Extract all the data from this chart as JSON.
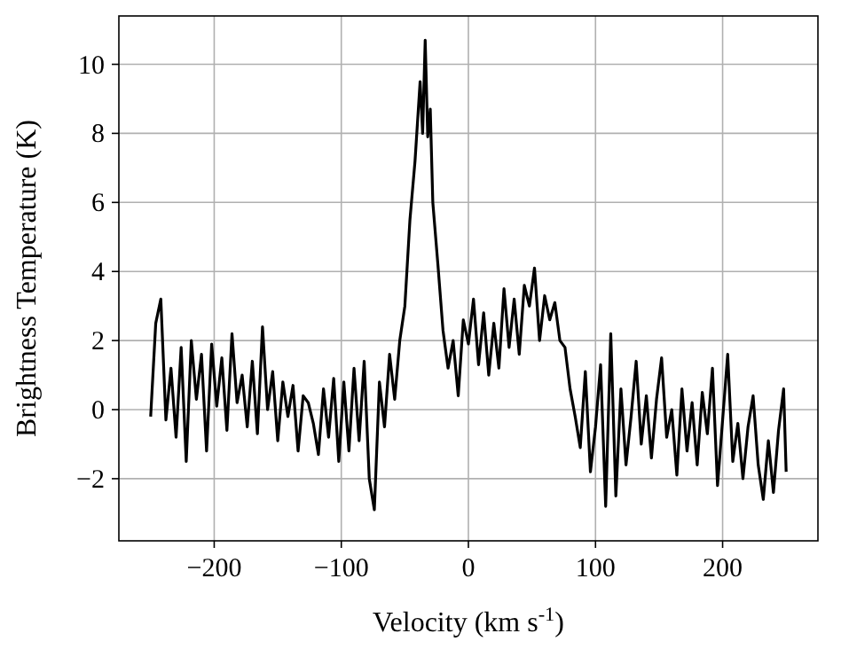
{
  "chart_data": {
    "type": "line",
    "xlabel": "Velocity (km s$^{-1}$)",
    "ylabel": "Brightness Temperature (K)",
    "xlim": [
      -275,
      275
    ],
    "ylim": [
      -3.8,
      11.4
    ],
    "xticks": [
      {
        "value": -200,
        "label": "−200"
      },
      {
        "value": -100,
        "label": "−100"
      },
      0,
      100,
      200
    ],
    "yticks": [
      {
        "value": -2,
        "label": "−2"
      },
      0,
      2,
      4,
      6,
      8,
      10
    ],
    "grid": true,
    "marker": "none",
    "line_style": "solid",
    "x": [
      -250,
      -246,
      -242,
      -238,
      -234,
      -230,
      -226,
      -222,
      -218,
      -214,
      -210,
      -206,
      -202,
      -198,
      -194,
      -190,
      -186,
      -182,
      -178,
      -174,
      -170,
      -166,
      -162,
      -158,
      -154,
      -150,
      -146,
      -142,
      -138,
      -134,
      -130,
      -126,
      -122,
      -118,
      -114,
      -110,
      -106,
      -102,
      -98,
      -94,
      -90,
      -86,
      -82,
      -78,
      -74,
      -70,
      -66,
      -62,
      -58,
      -54,
      -50,
      -46,
      -42,
      -38,
      -36,
      -34,
      -32,
      -30,
      -28,
      -24,
      -20,
      -16,
      -12,
      -8,
      -4,
      0,
      4,
      8,
      12,
      16,
      20,
      24,
      28,
      32,
      36,
      40,
      44,
      48,
      52,
      56,
      60,
      64,
      68,
      72,
      76,
      80,
      84,
      88,
      92,
      96,
      100,
      104,
      108,
      112,
      116,
      120,
      124,
      128,
      132,
      136,
      140,
      144,
      148,
      152,
      156,
      160,
      164,
      168,
      172,
      176,
      180,
      184,
      188,
      192,
      196,
      200,
      204,
      208,
      212,
      216,
      220,
      224,
      228,
      232,
      236,
      240,
      244,
      248,
      250
    ],
    "series": [
      {
        "color": "#000000",
        "values": [
          -0.2,
          2.5,
          3.2,
          -0.3,
          1.2,
          -0.8,
          1.8,
          -1.5,
          2.0,
          0.3,
          1.6,
          -1.2,
          1.9,
          0.1,
          1.5,
          -0.6,
          2.2,
          0.2,
          1.0,
          -0.5,
          1.4,
          -0.7,
          2.4,
          0.0,
          1.1,
          -0.9,
          0.8,
          -0.2,
          0.7,
          -1.2,
          0.4,
          0.2,
          -0.4,
          -1.3,
          0.6,
          -0.8,
          0.9,
          -1.5,
          0.8,
          -1.2,
          1.2,
          -0.9,
          1.4,
          -2.0,
          -2.9,
          0.8,
          -0.5,
          1.6,
          0.3,
          2.0,
          3.0,
          5.5,
          7.2,
          9.5,
          8.0,
          10.7,
          7.9,
          8.7,
          6.0,
          4.2,
          2.3,
          1.2,
          2.0,
          0.4,
          2.6,
          1.9,
          3.2,
          1.3,
          2.8,
          1.0,
          2.5,
          1.2,
          3.5,
          1.8,
          3.2,
          1.6,
          3.6,
          3.0,
          4.1,
          2.0,
          3.3,
          2.6,
          3.1,
          2.0,
          1.8,
          0.6,
          -0.2,
          -1.1,
          1.1,
          -1.8,
          -0.5,
          1.3,
          -2.8,
          2.2,
          -2.5,
          0.6,
          -1.6,
          -0.2,
          1.4,
          -1.0,
          0.4,
          -1.4,
          0.3,
          1.5,
          -0.8,
          0.0,
          -1.9,
          0.6,
          -1.2,
          0.2,
          -1.6,
          0.5,
          -0.7,
          1.2,
          -2.2,
          -0.3,
          1.6,
          -1.5,
          -0.4,
          -2.0,
          -0.5,
          0.4,
          -1.6,
          -2.6,
          -0.9,
          -2.4,
          -0.6,
          0.6,
          -1.8
        ]
      }
    ]
  }
}
